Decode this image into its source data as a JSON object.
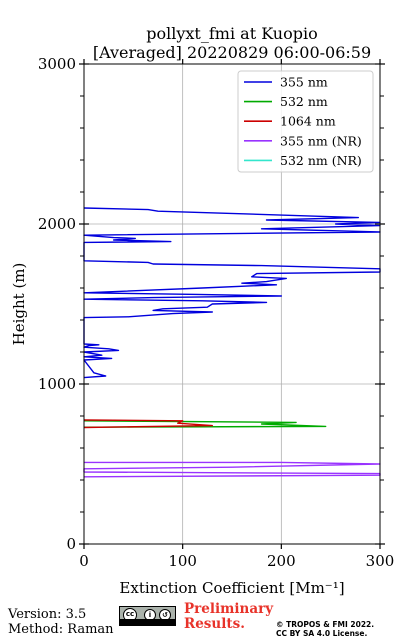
{
  "header": {
    "title_line1": "pollyxt_fmi at Kuopio",
    "title_line2": "[Averaged] 20220829 06:00-06:59"
  },
  "footer": {
    "version": "Version: 3.5",
    "method": "Method: Raman",
    "preliminary_line1": "Preliminary",
    "preliminary_line2": "Results.",
    "license_line1": "© TROPOS & FMI 2022.",
    "license_line2": "CC BY SA 4.0 License.",
    "badge_icon": "cc-by-sa-icon"
  },
  "chart_data": {
    "type": "line",
    "xlabel": "Extinction Coefficient [Mm⁻¹]",
    "ylabel": "Height (m)",
    "xlim": [
      0,
      300
    ],
    "ylim": [
      0,
      3000
    ],
    "x_ticks": [
      0,
      100,
      200,
      300
    ],
    "y_ticks": [
      0,
      1000,
      2000,
      3000
    ],
    "grid": true,
    "legend_position": "top-right",
    "series": [
      {
        "name": "355 nm",
        "color": "#0000dd",
        "points": [
          [
            0,
            2100
          ],
          [
            65,
            2090
          ],
          [
            75,
            2080
          ],
          [
            180,
            2060
          ],
          [
            278,
            2040
          ],
          [
            185,
            2025
          ],
          [
            300,
            2010
          ],
          [
            255,
            2000
          ],
          [
            300,
            1990
          ],
          [
            180,
            1970
          ],
          [
            300,
            1950
          ],
          [
            0,
            1930
          ],
          [
            30,
            1915
          ],
          [
            52,
            1910
          ],
          [
            30,
            1900
          ],
          [
            88,
            1890
          ],
          [
            0,
            1885
          ],
          [
            0,
            1770
          ],
          [
            65,
            1760
          ],
          [
            70,
            1750
          ],
          [
            180,
            1740
          ],
          [
            300,
            1720
          ],
          [
            300,
            1700
          ],
          [
            175,
            1690
          ],
          [
            170,
            1670
          ],
          [
            205,
            1660
          ],
          [
            185,
            1640
          ],
          [
            160,
            1630
          ],
          [
            195,
            1620
          ],
          [
            120,
            1600
          ],
          [
            0,
            1570
          ],
          [
            115,
            1560
          ],
          [
            200,
            1550
          ],
          [
            70,
            1540
          ],
          [
            0,
            1530
          ],
          [
            120,
            1520
          ],
          [
            185,
            1510
          ],
          [
            130,
            1500
          ],
          [
            125,
            1480
          ],
          [
            80,
            1470
          ],
          [
            70,
            1460
          ],
          [
            130,
            1450
          ],
          [
            90,
            1440
          ],
          [
            45,
            1420
          ],
          [
            0,
            1415
          ],
          [
            0,
            1250
          ],
          [
            15,
            1245
          ],
          [
            5,
            1240
          ],
          [
            0,
            1230
          ],
          [
            25,
            1220
          ],
          [
            35,
            1210
          ],
          [
            0,
            1200
          ],
          [
            18,
            1180
          ],
          [
            0,
            1170
          ],
          [
            28,
            1160
          ],
          [
            0,
            1150
          ],
          [
            10,
            1070
          ],
          [
            22,
            1050
          ],
          [
            0,
            1040
          ]
        ]
      },
      {
        "name": "532 nm",
        "color": "#00aa00",
        "points": [
          [
            0,
            770
          ],
          [
            215,
            760
          ],
          [
            180,
            750
          ],
          [
            245,
            735
          ],
          [
            0,
            730
          ]
        ]
      },
      {
        "name": "1064 nm",
        "color": "#cc0000",
        "points": [
          [
            0,
            775
          ],
          [
            100,
            770
          ],
          [
            95,
            755
          ],
          [
            130,
            740
          ],
          [
            0,
            728
          ]
        ]
      },
      {
        "name": "355 nm (NR)",
        "color": "#9933ff",
        "points": [
          [
            0,
            510
          ],
          [
            200,
            510
          ],
          [
            300,
            500
          ],
          [
            150,
            480
          ],
          [
            0,
            470
          ],
          [
            0,
            450
          ],
          [
            300,
            440
          ],
          [
            300,
            430
          ],
          [
            0,
            420
          ]
        ]
      },
      {
        "name": "532 nm (NR)",
        "color": "#33e6cc",
        "points": []
      }
    ]
  }
}
